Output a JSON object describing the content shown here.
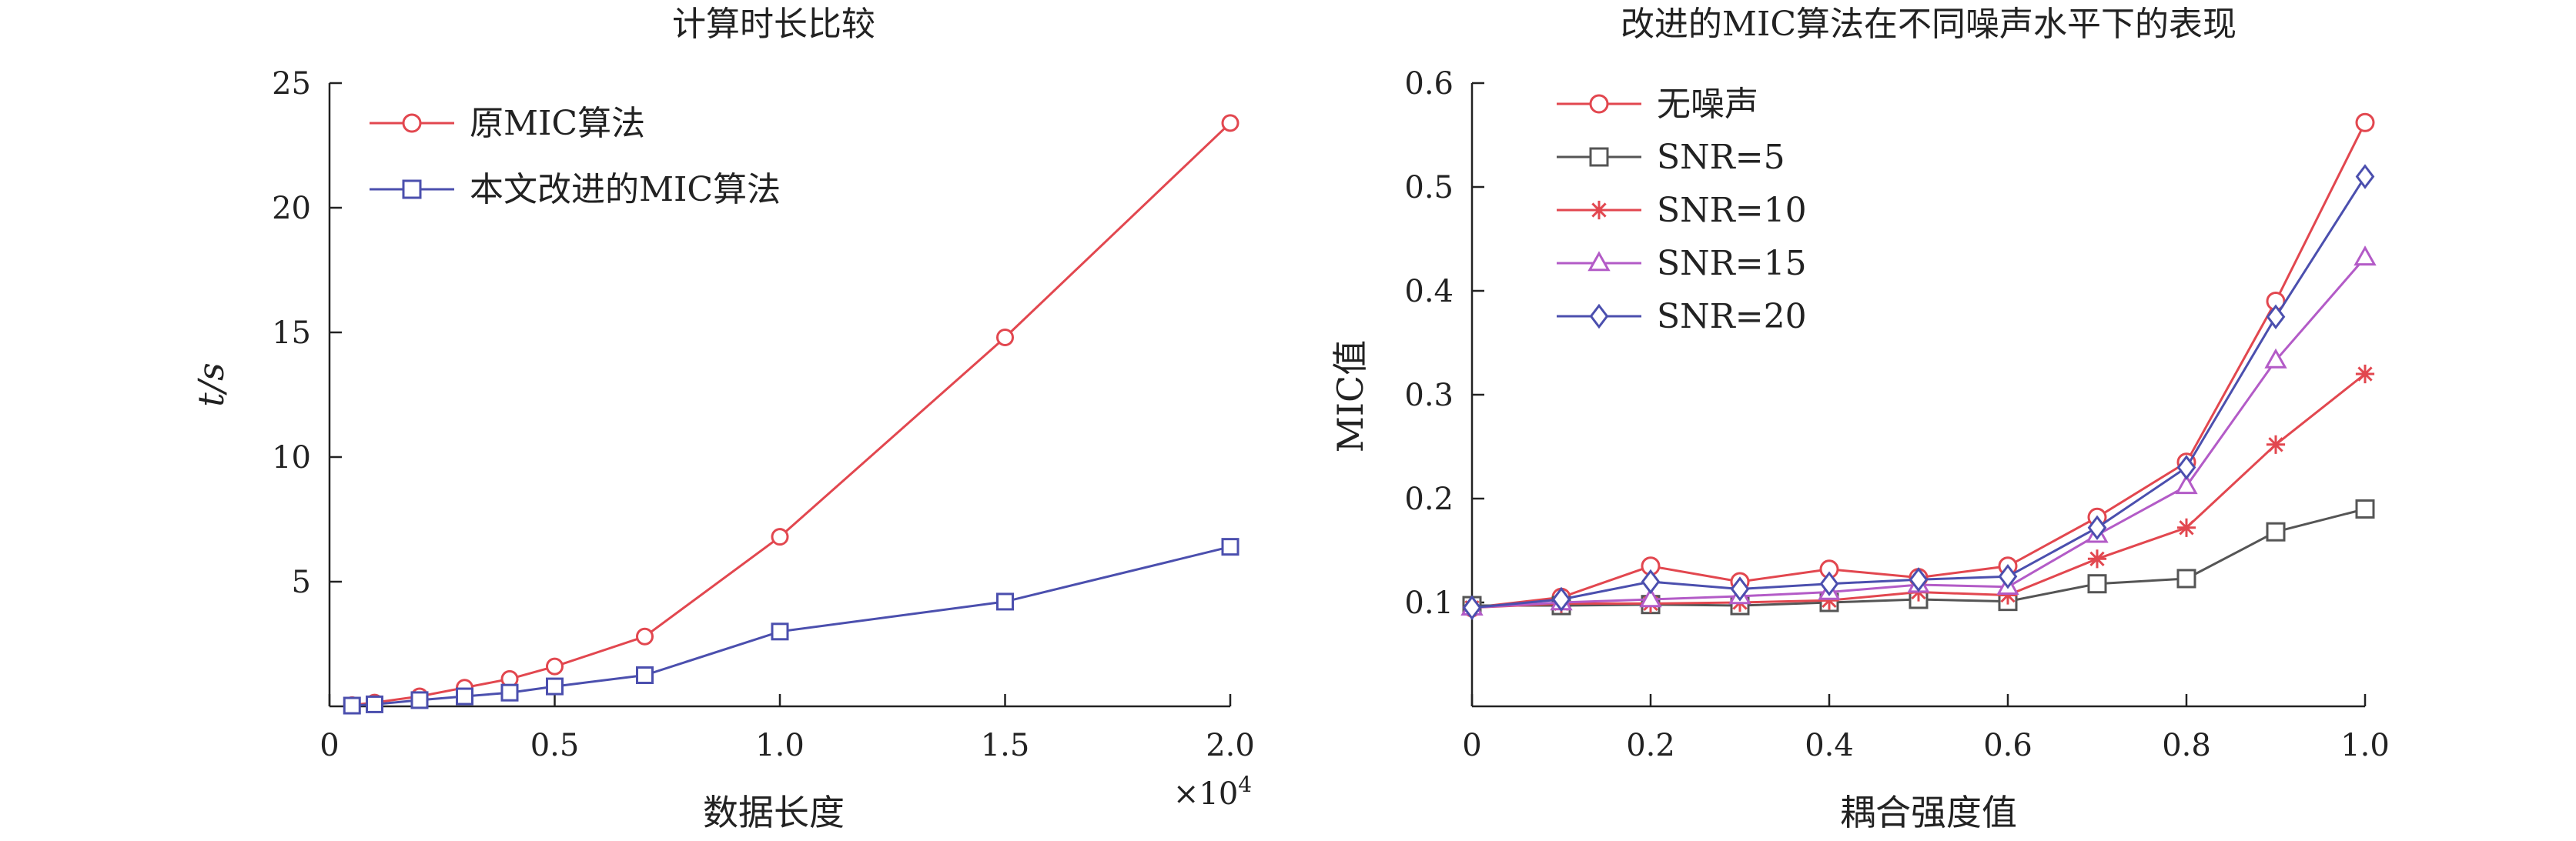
{
  "colors": {
    "red": "#e2474f",
    "blue": "#4b4fae",
    "gray": "#555555",
    "purple": "#b35bc7"
  },
  "chart_data": [
    {
      "type": "line",
      "title": "计算时长比较",
      "xlabel": "数据长度",
      "ylabel": "t/s",
      "x_multiplier_label": "×10",
      "x_multiplier_exp": "4",
      "xlim": [
        0,
        2.0
      ],
      "ylim": [
        0,
        25
      ],
      "x_ticks": [
        0,
        0.5,
        1.0,
        1.5,
        2.0
      ],
      "x_tick_labels": [
        "0",
        "0.5",
        "1.0",
        "1.5",
        "2.0"
      ],
      "y_ticks": [
        5,
        10,
        15,
        20,
        25
      ],
      "y_tick_labels": [
        "5",
        "10",
        "15",
        "20",
        "25"
      ],
      "legend_position": "top-left",
      "series": [
        {
          "name": "原MIC算法",
          "color": "#e2474f",
          "marker": "circle",
          "x": [
            0.05,
            0.1,
            0.2,
            0.3,
            0.4,
            0.5,
            0.7,
            1.0,
            1.5,
            2.0
          ],
          "y": [
            0.05,
            0.15,
            0.4,
            0.75,
            1.1,
            1.6,
            2.8,
            6.8,
            14.8,
            23.4
          ]
        },
        {
          "name": "本文改进的MIC算法",
          "color": "#4b4fae",
          "marker": "square",
          "x": [
            0.05,
            0.1,
            0.2,
            0.3,
            0.4,
            0.5,
            0.7,
            1.0,
            1.5,
            2.0
          ],
          "y": [
            0.03,
            0.08,
            0.25,
            0.4,
            0.55,
            0.8,
            1.25,
            3.0,
            4.2,
            6.4
          ]
        }
      ]
    },
    {
      "type": "line",
      "title": "改进的MIC算法在不同噪声水平下的表现",
      "xlabel": "耦合强度值",
      "ylabel": "MIC值",
      "xlim": [
        0,
        1.0
      ],
      "ylim": [
        0,
        0.6
      ],
      "x_ticks": [
        0,
        0.2,
        0.4,
        0.6,
        0.8,
        1.0
      ],
      "x_tick_labels": [
        "0",
        "0.2",
        "0.4",
        "0.6",
        "0.8",
        "1.0"
      ],
      "y_ticks": [
        0.1,
        0.2,
        0.3,
        0.4,
        0.5,
        0.6
      ],
      "y_tick_labels": [
        "0.1",
        "0.2",
        "0.3",
        "0.4",
        "0.5",
        "0.6"
      ],
      "legend_position": "top-left",
      "series": [
        {
          "name": "无噪声",
          "color": "#e2474f",
          "marker": "circle",
          "x": [
            0,
            0.1,
            0.2,
            0.3,
            0.4,
            0.5,
            0.6,
            0.7,
            0.8,
            0.9,
            1.0
          ],
          "y": [
            0.095,
            0.105,
            0.135,
            0.12,
            0.132,
            0.124,
            0.135,
            0.182,
            0.235,
            0.39,
            0.562
          ]
        },
        {
          "name": "SNR=5",
          "color": "#555555",
          "marker": "square",
          "x": [
            0,
            0.1,
            0.2,
            0.3,
            0.4,
            0.5,
            0.6,
            0.7,
            0.8,
            0.9,
            1.0
          ],
          "y": [
            0.097,
            0.097,
            0.098,
            0.097,
            0.1,
            0.103,
            0.101,
            0.118,
            0.123,
            0.168,
            0.19
          ]
        },
        {
          "name": "SNR=10",
          "color": "#e2474f",
          "marker": "asterisk",
          "x": [
            0,
            0.1,
            0.2,
            0.3,
            0.4,
            0.5,
            0.6,
            0.7,
            0.8,
            0.9,
            1.0
          ],
          "y": [
            0.095,
            0.099,
            0.099,
            0.1,
            0.102,
            0.11,
            0.107,
            0.142,
            0.172,
            0.252,
            0.32
          ]
        },
        {
          "name": "SNR=15",
          "color": "#b35bc7",
          "marker": "triangle",
          "x": [
            0,
            0.1,
            0.2,
            0.3,
            0.4,
            0.5,
            0.6,
            0.7,
            0.8,
            0.9,
            1.0
          ],
          "y": [
            0.095,
            0.1,
            0.103,
            0.106,
            0.11,
            0.117,
            0.115,
            0.165,
            0.212,
            0.333,
            0.432
          ]
        },
        {
          "name": "SNR=20",
          "color": "#4b4fae",
          "marker": "diamond",
          "x": [
            0,
            0.1,
            0.2,
            0.3,
            0.4,
            0.5,
            0.6,
            0.7,
            0.8,
            0.9,
            1.0
          ],
          "y": [
            0.095,
            0.103,
            0.12,
            0.113,
            0.118,
            0.122,
            0.125,
            0.172,
            0.23,
            0.375,
            0.51
          ]
        }
      ]
    }
  ]
}
